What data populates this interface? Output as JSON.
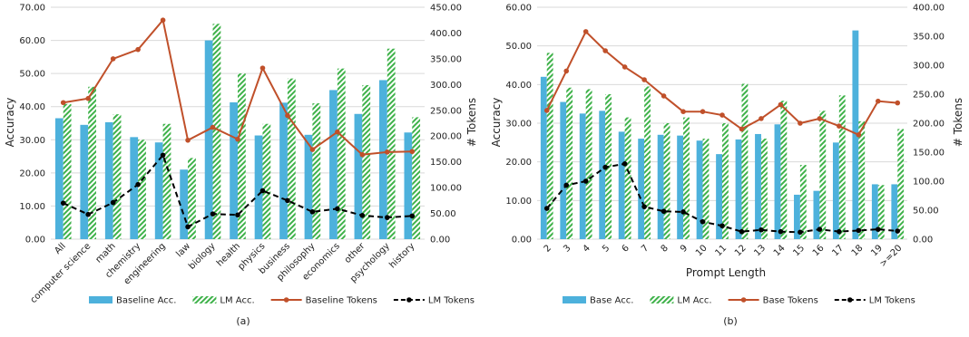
{
  "colors": {
    "baseline_bar": "#4db1dc",
    "lm_bar": "#3fb24a",
    "baseline_line": "#c0502a",
    "lm_line": "#000000",
    "grid": "#d9d9d9"
  },
  "chart_data": [
    {
      "type": "bar+line",
      "caption": "(a)",
      "xlabel": "",
      "ylabel": "Accuracy",
      "y2label": "# Tokens",
      "ylim": [
        0,
        70
      ],
      "y2lim": [
        0,
        450
      ],
      "yticks": [
        "0.00",
        "10.00",
        "20.00",
        "30.00",
        "40.00",
        "50.00",
        "60.00",
        "70.00"
      ],
      "y2ticks": [
        "0.00",
        "50.00",
        "100.00",
        "150.00",
        "200.00",
        "250.00",
        "300.00",
        "350.00",
        "400.00",
        "450.00"
      ],
      "grid": true,
      "legend_position": "bottom",
      "categories": [
        "All",
        "computer science",
        "math",
        "chemistry",
        "engineering",
        "law",
        "biology",
        "health",
        "physics",
        "business",
        "philosophy",
        "economics",
        "other",
        "psychology",
        "history"
      ],
      "series": [
        {
          "name": "Baseline Acc.",
          "kind": "bar",
          "axis": "left",
          "values": [
            36.5,
            34.5,
            35.3,
            30.8,
            29.2,
            21.0,
            60.0,
            41.3,
            31.3,
            41.2,
            31.5,
            45.0,
            37.8,
            48.0,
            32.2
          ]
        },
        {
          "name": "LM Acc.",
          "kind": "bar",
          "axis": "left",
          "values": [
            40.8,
            46.0,
            37.7,
            30.0,
            34.8,
            24.5,
            65.0,
            50.0,
            34.8,
            48.5,
            41.0,
            51.5,
            46.5,
            57.5,
            36.8
          ]
        },
        {
          "name": "Baseline Tokens",
          "kind": "line",
          "axis": "right",
          "values": [
            265,
            273,
            350,
            368,
            425,
            192,
            217,
            194,
            332,
            240,
            174,
            208,
            164,
            169,
            170
          ]
        },
        {
          "name": "LM Tokens",
          "kind": "line",
          "axis": "right",
          "values": [
            70,
            48,
            71,
            106,
            163,
            24,
            49,
            47,
            94,
            75,
            53,
            59,
            46,
            42,
            45
          ]
        }
      ]
    },
    {
      "type": "bar+line",
      "caption": "(b)",
      "xlabel": "Prompt Length",
      "ylabel": "Accuracy",
      "y2label": "# Tokens",
      "ylim": [
        0,
        60
      ],
      "y2lim": [
        0,
        400
      ],
      "yticks": [
        "0.00",
        "10.00",
        "20.00",
        "30.00",
        "40.00",
        "50.00",
        "60.00"
      ],
      "y2ticks": [
        "0.00",
        "50.00",
        "100.00",
        "150.00",
        "200.00",
        "250.00",
        "300.00",
        "350.00",
        "400.00"
      ],
      "grid": true,
      "legend_position": "bottom",
      "categories": [
        "2",
        "3",
        "4",
        "5",
        "6",
        "7",
        "8",
        "9",
        "10",
        "11",
        "12",
        "13",
        "14",
        "15",
        "16",
        "17",
        "18",
        "19",
        ">=20"
      ],
      "series": [
        {
          "name": "Base Acc.",
          "kind": "bar",
          "axis": "left",
          "values": [
            42.0,
            35.5,
            32.5,
            33.2,
            27.8,
            26.0,
            27.0,
            26.8,
            25.5,
            22.0,
            25.8,
            27.2,
            29.7,
            11.5,
            12.5,
            25.0,
            54.0,
            14.2,
            14.2
          ]
        },
        {
          "name": "LM Acc.",
          "kind": "bar",
          "axis": "left",
          "values": [
            48.2,
            39.2,
            38.8,
            37.5,
            31.5,
            39.5,
            30.0,
            31.5,
            26.0,
            30.0,
            40.2,
            26.0,
            35.8,
            19.2,
            33.2,
            37.2,
            30.5,
            14.0,
            28.5
          ]
        },
        {
          "name": "Base Tokens",
          "kind": "line",
          "axis": "right",
          "values": [
            222,
            290,
            358,
            325,
            297,
            275,
            247,
            220,
            220,
            214,
            190,
            208,
            232,
            200,
            208,
            195,
            180,
            238,
            235
          ]
        },
        {
          "name": "LM Tokens",
          "kind": "line",
          "axis": "right",
          "values": [
            53,
            93,
            100,
            124,
            130,
            56,
            48,
            47,
            30,
            23,
            13,
            16,
            13,
            12,
            17,
            13,
            15,
            17,
            14
          ]
        }
      ]
    }
  ]
}
